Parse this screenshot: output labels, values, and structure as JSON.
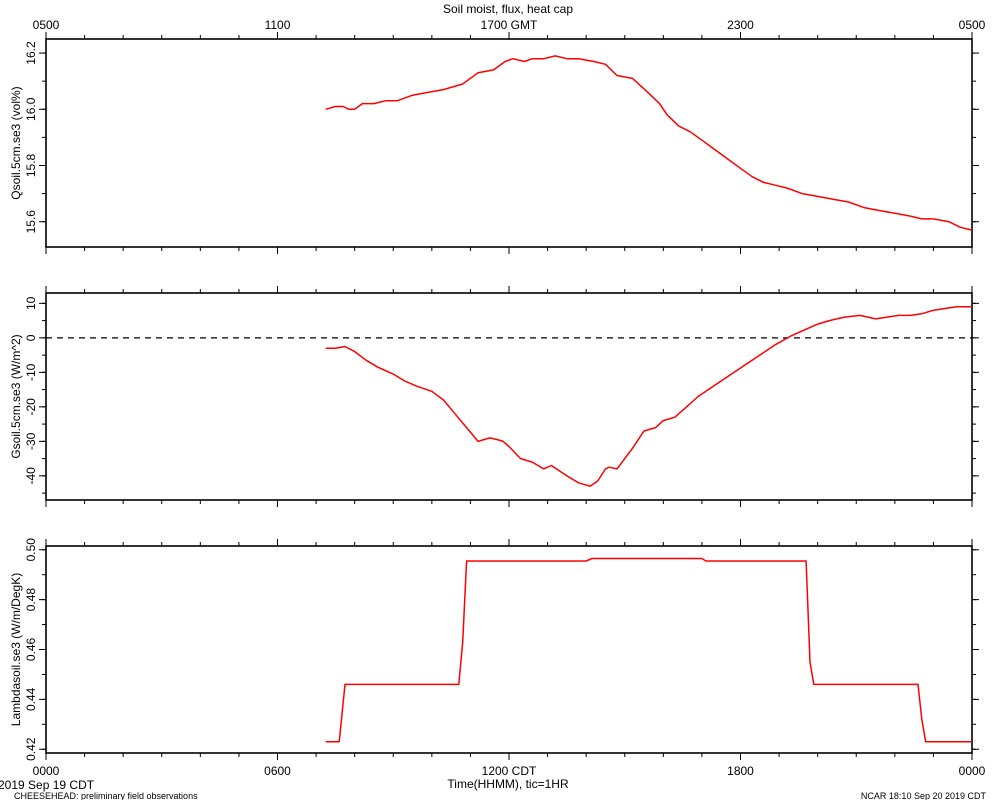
{
  "figure": {
    "title": "Soil moist, flux, heat cap",
    "bottom_xlabel": "Time(HHMM), tic=1HR",
    "date_label": "2019 Sep 19 CDT",
    "footer_left": "CHEESEHEAD: preliminary field observations",
    "footer_right": "NCAR 18:10 Sep 20 2019 CDT",
    "line_color": "#ff0000",
    "axis_color": "#000000"
  },
  "time_axis": {
    "range_hours": [
      0,
      24
    ],
    "minor_tick_step_hours": 1,
    "top_ticks": [
      {
        "h": 0,
        "label": "0500"
      },
      {
        "h": 6,
        "label": "1100"
      },
      {
        "h": 12,
        "label": "1700 GMT"
      },
      {
        "h": 18,
        "label": "2300"
      },
      {
        "h": 24,
        "label": "0500"
      }
    ],
    "bottom_ticks": [
      {
        "h": 0,
        "label": "0000"
      },
      {
        "h": 6,
        "label": "0600"
      },
      {
        "h": 12,
        "label": "1200 CDT"
      },
      {
        "h": 18,
        "label": "1800"
      },
      {
        "h": 24,
        "label": "0000"
      }
    ]
  },
  "chart_data": [
    {
      "type": "line",
      "ylabel": "Qsoil.5cm.se3 (vol%)",
      "ylim": [
        15.51,
        16.25
      ],
      "yticks": [
        15.6,
        15.8,
        16.0,
        16.2
      ],
      "ytick_labels": [
        "15.6",
        "15.8",
        "16.0",
        "16.2"
      ],
      "minor_step": 0.1,
      "zero_line": false,
      "x": [
        7.25,
        7.5,
        7.7,
        7.85,
        8.0,
        8.2,
        8.5,
        8.8,
        9.1,
        9.5,
        9.9,
        10.3,
        10.8,
        11.2,
        11.6,
        11.9,
        12.1,
        12.4,
        12.6,
        12.9,
        13.2,
        13.5,
        13.8,
        14.2,
        14.5,
        14.8,
        15.2,
        15.6,
        15.9,
        16.1,
        16.4,
        16.7,
        17.0,
        17.3,
        17.7,
        18.0,
        18.3,
        18.6,
        18.9,
        19.2,
        19.6,
        20.0,
        20.4,
        20.8,
        21.2,
        21.6,
        22.0,
        22.4,
        22.7,
        23.0,
        23.4,
        23.7,
        24.0
      ],
      "values": [
        16.0,
        16.01,
        16.01,
        16.0,
        16.0,
        16.02,
        16.02,
        16.03,
        16.03,
        16.05,
        16.06,
        16.07,
        16.09,
        16.13,
        16.14,
        16.17,
        16.18,
        16.17,
        16.18,
        16.18,
        16.19,
        16.18,
        16.18,
        16.17,
        16.16,
        16.12,
        16.11,
        16.06,
        16.02,
        15.98,
        15.94,
        15.92,
        15.89,
        15.86,
        15.82,
        15.79,
        15.76,
        15.74,
        15.73,
        15.72,
        15.7,
        15.69,
        15.68,
        15.67,
        15.65,
        15.64,
        15.63,
        15.62,
        15.61,
        15.61,
        15.6,
        15.58,
        15.57
      ]
    },
    {
      "type": "line",
      "ylabel": "Gsoil.5cm.se3 (W/m^2)",
      "ylim": [
        -47,
        13
      ],
      "yticks": [
        -40,
        -30,
        -20,
        -10,
        0,
        10
      ],
      "ytick_labels": [
        "-40",
        "-30",
        "-20",
        "-10",
        "0",
        "10"
      ],
      "minor_step": 5,
      "zero_line": true,
      "x": [
        7.25,
        7.5,
        7.75,
        8.0,
        8.3,
        8.6,
        9.0,
        9.3,
        9.6,
        10.0,
        10.3,
        10.6,
        10.9,
        11.2,
        11.5,
        11.7,
        11.85,
        12.0,
        12.3,
        12.6,
        12.9,
        13.1,
        13.3,
        13.5,
        13.8,
        14.1,
        14.3,
        14.5,
        14.6,
        14.8,
        15.0,
        15.2,
        15.5,
        15.8,
        16.0,
        16.3,
        16.6,
        16.9,
        17.3,
        17.7,
        18.1,
        18.5,
        18.9,
        19.3,
        19.7,
        20.0,
        20.3,
        20.7,
        21.1,
        21.5,
        21.8,
        22.1,
        22.4,
        22.7,
        23.0,
        23.3,
        23.6,
        24.0
      ],
      "values": [
        -3,
        -3,
        -2.5,
        -4,
        -6.5,
        -8.5,
        -10.5,
        -12.5,
        -14,
        -15.5,
        -18,
        -22,
        -26,
        -30,
        -29,
        -29.5,
        -30,
        -31.5,
        -35,
        -36,
        -38,
        -37,
        -38.5,
        -40,
        -42,
        -43,
        -41.5,
        -38,
        -37.5,
        -38,
        -35,
        -32,
        -27,
        -26,
        -24,
        -23,
        -20,
        -17,
        -14,
        -11,
        -8,
        -5,
        -2,
        0.5,
        2.5,
        4,
        5,
        6,
        6.5,
        5.5,
        6,
        6.5,
        6.5,
        7,
        8,
        8.5,
        9,
        9
      ]
    },
    {
      "type": "line",
      "ylabel": "Lambdasoil.se3 (W/m/DegK)",
      "ylim": [
        0.4185,
        0.5015
      ],
      "yticks": [
        0.42,
        0.44,
        0.46,
        0.48,
        0.5
      ],
      "ytick_labels": [
        "0.42",
        "0.44",
        "0.46",
        "0.48",
        "0.50"
      ],
      "minor_step": 0.01,
      "zero_line": false,
      "x": [
        7.25,
        7.6,
        7.75,
        10.7,
        10.8,
        10.9,
        14.0,
        14.15,
        17.0,
        17.1,
        19.7,
        19.8,
        19.9,
        22.6,
        22.7,
        22.8,
        24.0
      ],
      "values": [
        0.423,
        0.423,
        0.446,
        0.446,
        0.463,
        0.4955,
        0.4955,
        0.4965,
        0.4965,
        0.4955,
        0.4955,
        0.455,
        0.446,
        0.446,
        0.432,
        0.423,
        0.423
      ]
    }
  ]
}
